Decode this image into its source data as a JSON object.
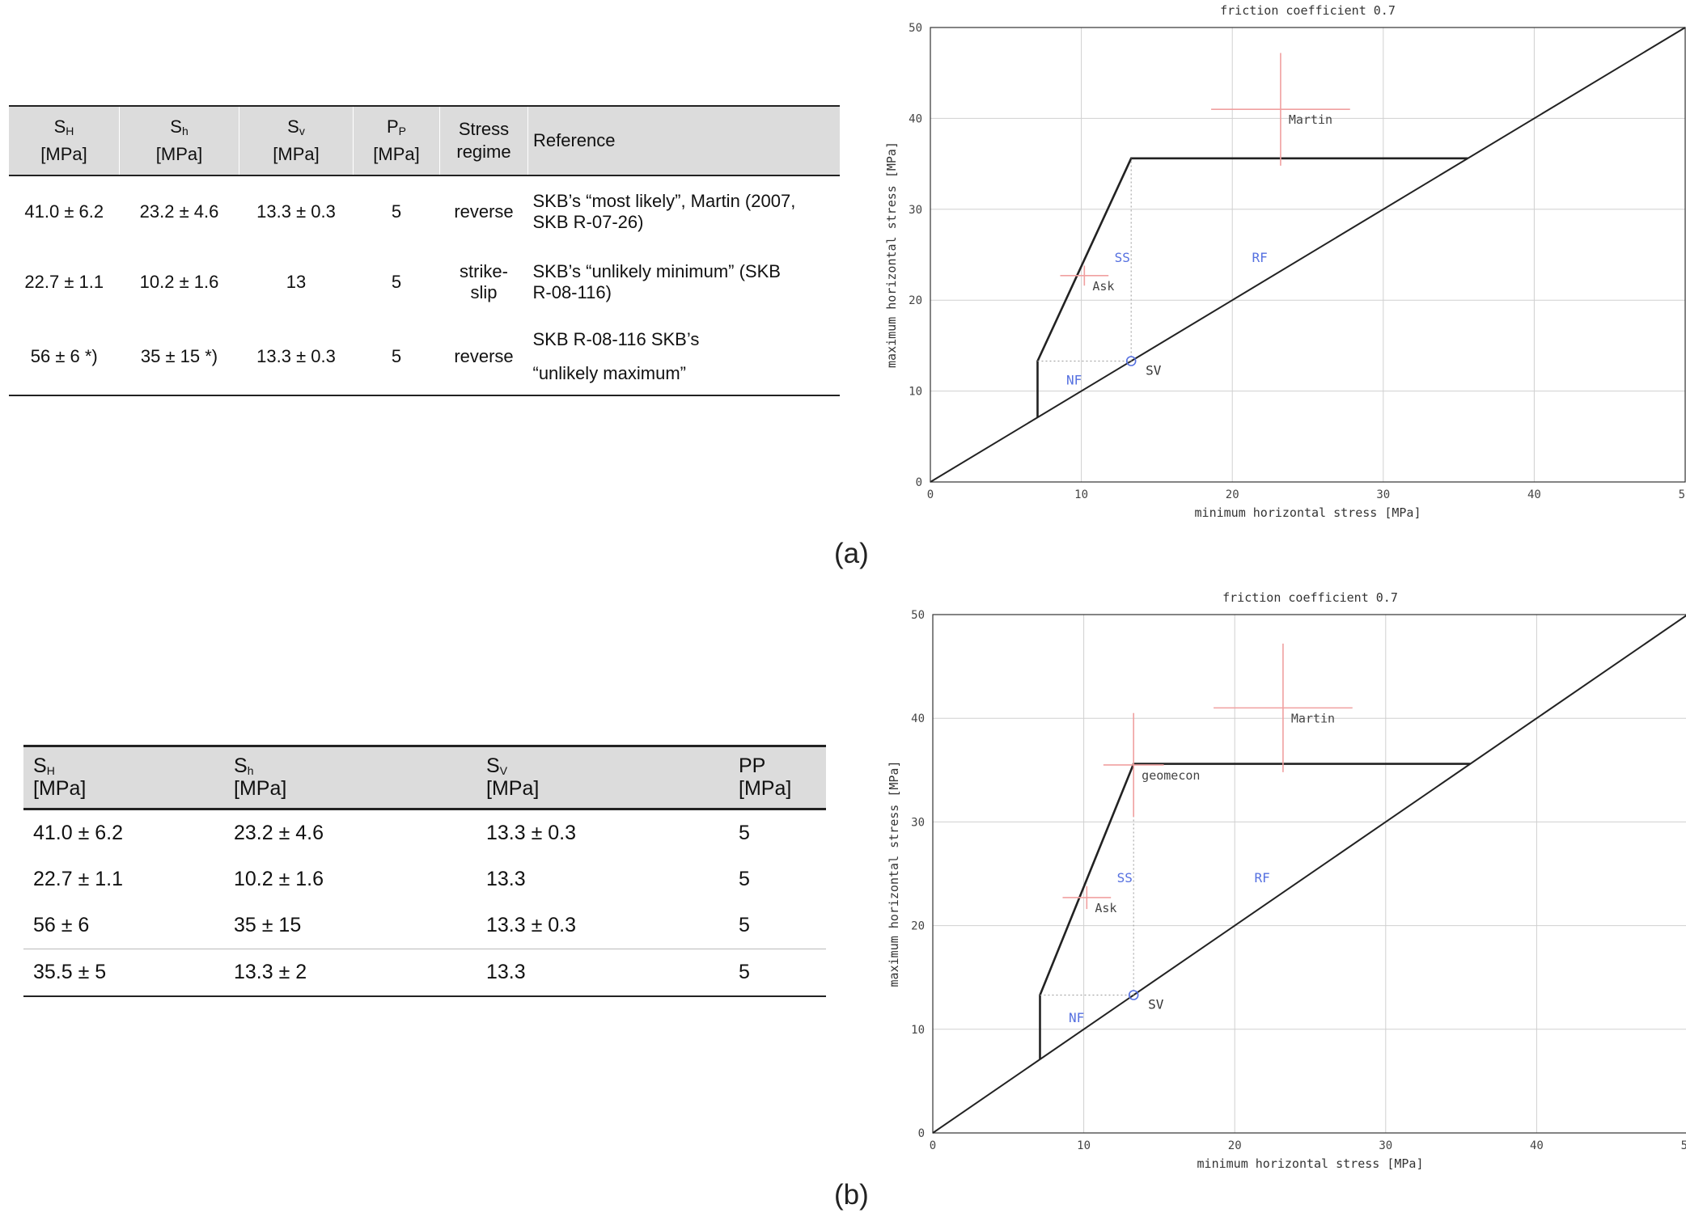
{
  "table_a": {
    "headers": [
      {
        "sym": "S",
        "sub": "H",
        "unit": "[MPa]"
      },
      {
        "sym": "S",
        "sub": "h",
        "unit": "[MPa]"
      },
      {
        "sym": "S",
        "sub": "v",
        "unit": "[MPa]"
      },
      {
        "sym": "P",
        "sub": "P",
        "unit": "[MPa]"
      },
      {
        "line1": "Stress",
        "line2": "regime"
      },
      {
        "label": "Reference"
      }
    ],
    "rows": [
      {
        "sh_max": "41.0 ± 6.2",
        "sh_min": "23.2 ±  4.6",
        "sv": "13.3 ± 0.3",
        "pp": "5",
        "regime": "reverse",
        "ref_l1": "SKB’s “most likely”, Martin (2007,",
        "ref_l2": "SKB R-07-26)"
      },
      {
        "sh_max": "22.7 ± 1.1",
        "sh_min": "10.2 ± 1.6",
        "sv": "13",
        "pp": "5",
        "regime_l1": "strike-",
        "regime_l2": "slip",
        "ref_l1": "SKB’s “unlikely minimum” (SKB",
        "ref_l2": "R-08-116)"
      },
      {
        "sh_max": "56 ± 6 *)",
        "sh_min": "35 ± 15 *)",
        "sv": "13.3 ± 0.3",
        "pp": "5",
        "regime": "reverse",
        "ref_l1": "SKB R-08-116 SKB’s",
        "ref_l2": "“unlikely maximum”"
      }
    ]
  },
  "table_b": {
    "headers": [
      {
        "sym": "S",
        "sub": "H",
        "unit": "[MPa]"
      },
      {
        "sym": "S",
        "sub": "h",
        "unit": "[MPa]"
      },
      {
        "sym": "S",
        "sub": "V",
        "unit": "[MPa]"
      },
      {
        "label": "PP",
        "unit": "[MPa]"
      }
    ],
    "rows": [
      [
        "41.0 ± 6.2",
        "23.2 ±  4.6",
        "13.3 ± 0.3",
        "5"
      ],
      [
        "22.7 ± 1.1",
        "10.2 ± 1.6",
        "13.3",
        "5"
      ],
      [
        "56 ± 6",
        "35 ± 15",
        "13.3 ± 0.3",
        "5"
      ],
      [
        "35.5 ± 5",
        "13.3 ± 2",
        "13.3",
        "5"
      ]
    ]
  },
  "captions": {
    "a": "(a)",
    "b": "(b)"
  },
  "chart_data": [
    {
      "type": "scatter",
      "title": "friction coefficient 0.7",
      "xlabel": "minimum horizontal stress [MPa]",
      "ylabel": "maximum horizontal stress [MPa]",
      "xlim": [
        0,
        50
      ],
      "ylim": [
        0,
        50
      ],
      "ticks": [
        "0",
        "10",
        "20",
        "30",
        "40",
        "50"
      ],
      "grid": true,
      "boundary_polygon": [
        [
          7.1,
          7.1
        ],
        [
          7.1,
          13.3
        ],
        [
          13.3,
          35.6
        ],
        [
          35.6,
          35.6
        ]
      ],
      "diagonal": [
        [
          0,
          0
        ],
        [
          50,
          50
        ]
      ],
      "sv_point": {
        "label": "SV",
        "x": 13.3,
        "y": 13.3
      },
      "regions": [
        {
          "label": "SS",
          "x": 12.2,
          "y": 24.2
        },
        {
          "label": "RF",
          "x": 21.3,
          "y": 24.2
        },
        {
          "label": "NF",
          "x": 9.0,
          "y": 10.7
        }
      ],
      "measurements": [
        {
          "name": "Martin",
          "x": 23.2,
          "y": 41.0,
          "xerr": 4.6,
          "yerr": 6.2
        },
        {
          "name": "Ask",
          "x": 10.2,
          "y": 22.7,
          "xerr": 1.6,
          "yerr": 1.1
        }
      ],
      "colors": {
        "frame": "#333333",
        "grid": "#d0d0d0",
        "region": "#5570e0",
        "error": "#f0a0a0",
        "line": "#222222"
      }
    },
    {
      "type": "scatter",
      "title": "friction coefficient 0.7",
      "xlabel": "minimum horizontal stress [MPa]",
      "ylabel": "maximum horizontal stress [MPa]",
      "xlim": [
        0,
        50
      ],
      "ylim": [
        0,
        50
      ],
      "ticks": [
        "0",
        "10",
        "20",
        "30",
        "40",
        "50"
      ],
      "grid": true,
      "boundary_polygon": [
        [
          7.1,
          7.1
        ],
        [
          7.1,
          13.3
        ],
        [
          13.3,
          35.6
        ],
        [
          35.6,
          35.6
        ]
      ],
      "diagonal": [
        [
          0,
          0
        ],
        [
          50,
          50
        ]
      ],
      "sv_point": {
        "label": "SV",
        "x": 13.3,
        "y": 13.3
      },
      "regions": [
        {
          "label": "SS",
          "x": 12.2,
          "y": 24.2
        },
        {
          "label": "RF",
          "x": 21.3,
          "y": 24.2
        },
        {
          "label": "NF",
          "x": 9.0,
          "y": 10.7
        }
      ],
      "measurements": [
        {
          "name": "Martin",
          "x": 23.2,
          "y": 41.0,
          "xerr": 4.6,
          "yerr": 6.2
        },
        {
          "name": "Ask",
          "x": 10.2,
          "y": 22.7,
          "xerr": 1.6,
          "yerr": 1.1
        },
        {
          "name": "geomecon",
          "x": 13.3,
          "y": 35.5,
          "xerr": 2.0,
          "yerr": 5.0
        }
      ],
      "colors": {
        "frame": "#333333",
        "grid": "#d0d0d0",
        "region": "#5570e0",
        "error": "#f0a0a0",
        "line": "#222222"
      }
    }
  ]
}
